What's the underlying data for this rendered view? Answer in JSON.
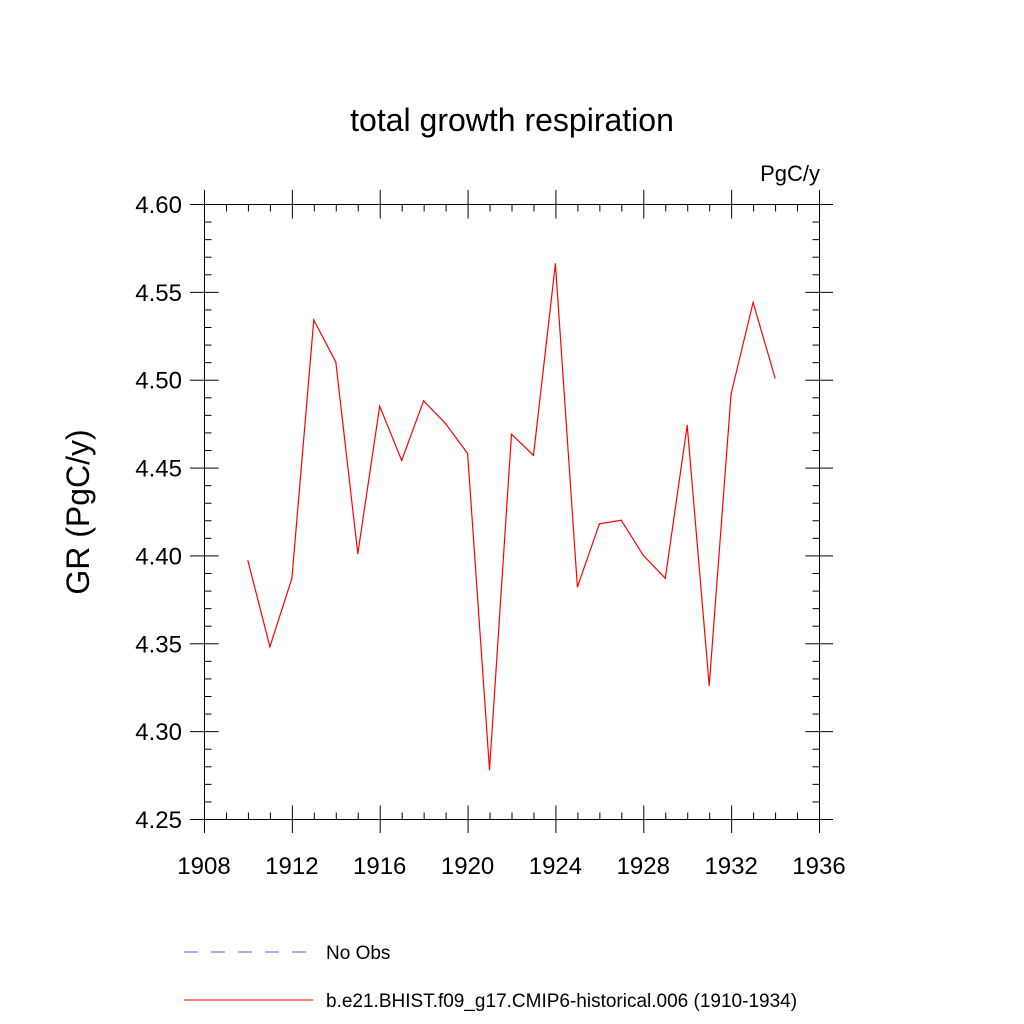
{
  "chart_data": {
    "type": "line",
    "title": "total growth respiration",
    "units_label": "PgC/y",
    "xlabel": "",
    "ylabel": "GR  (PgC/y)",
    "xlim": [
      1908,
      1936
    ],
    "ylim": [
      4.25,
      4.6
    ],
    "x_ticks": [
      1908,
      1912,
      1916,
      1920,
      1924,
      1928,
      1932,
      1936
    ],
    "y_ticks": [
      "4.25",
      "4.30",
      "4.35",
      "4.40",
      "4.45",
      "4.50",
      "4.55",
      "4.60"
    ],
    "grid": false,
    "legend_position": "bottom",
    "series": [
      {
        "name": "b.e21.BHIST.f09_g17.CMIP6-historical.006 (1910-1934)",
        "color": "#ff0000",
        "style": "solid",
        "x": [
          1910,
          1911,
          1912,
          1913,
          1914,
          1915,
          1916,
          1917,
          1918,
          1919,
          1920,
          1921,
          1922,
          1923,
          1924,
          1925,
          1926,
          1927,
          1928,
          1929,
          1930,
          1931,
          1932,
          1933,
          1934
        ],
        "y": [
          4.397,
          4.348,
          4.387,
          4.534,
          4.51,
          4.401,
          4.485,
          4.454,
          4.488,
          4.475,
          4.458,
          4.278,
          4.469,
          4.457,
          4.566,
          4.382,
          4.418,
          4.42,
          4.4,
          4.387,
          4.474,
          4.326,
          4.492,
          4.544,
          4.501
        ]
      }
    ],
    "legend": [
      {
        "label": "No Obs",
        "color": "#6a5acd",
        "style": "dashed"
      },
      {
        "label": "b.e21.BHIST.f09_g17.CMIP6-historical.006 (1910-1934)",
        "color": "#ff0000",
        "style": "solid"
      }
    ]
  }
}
